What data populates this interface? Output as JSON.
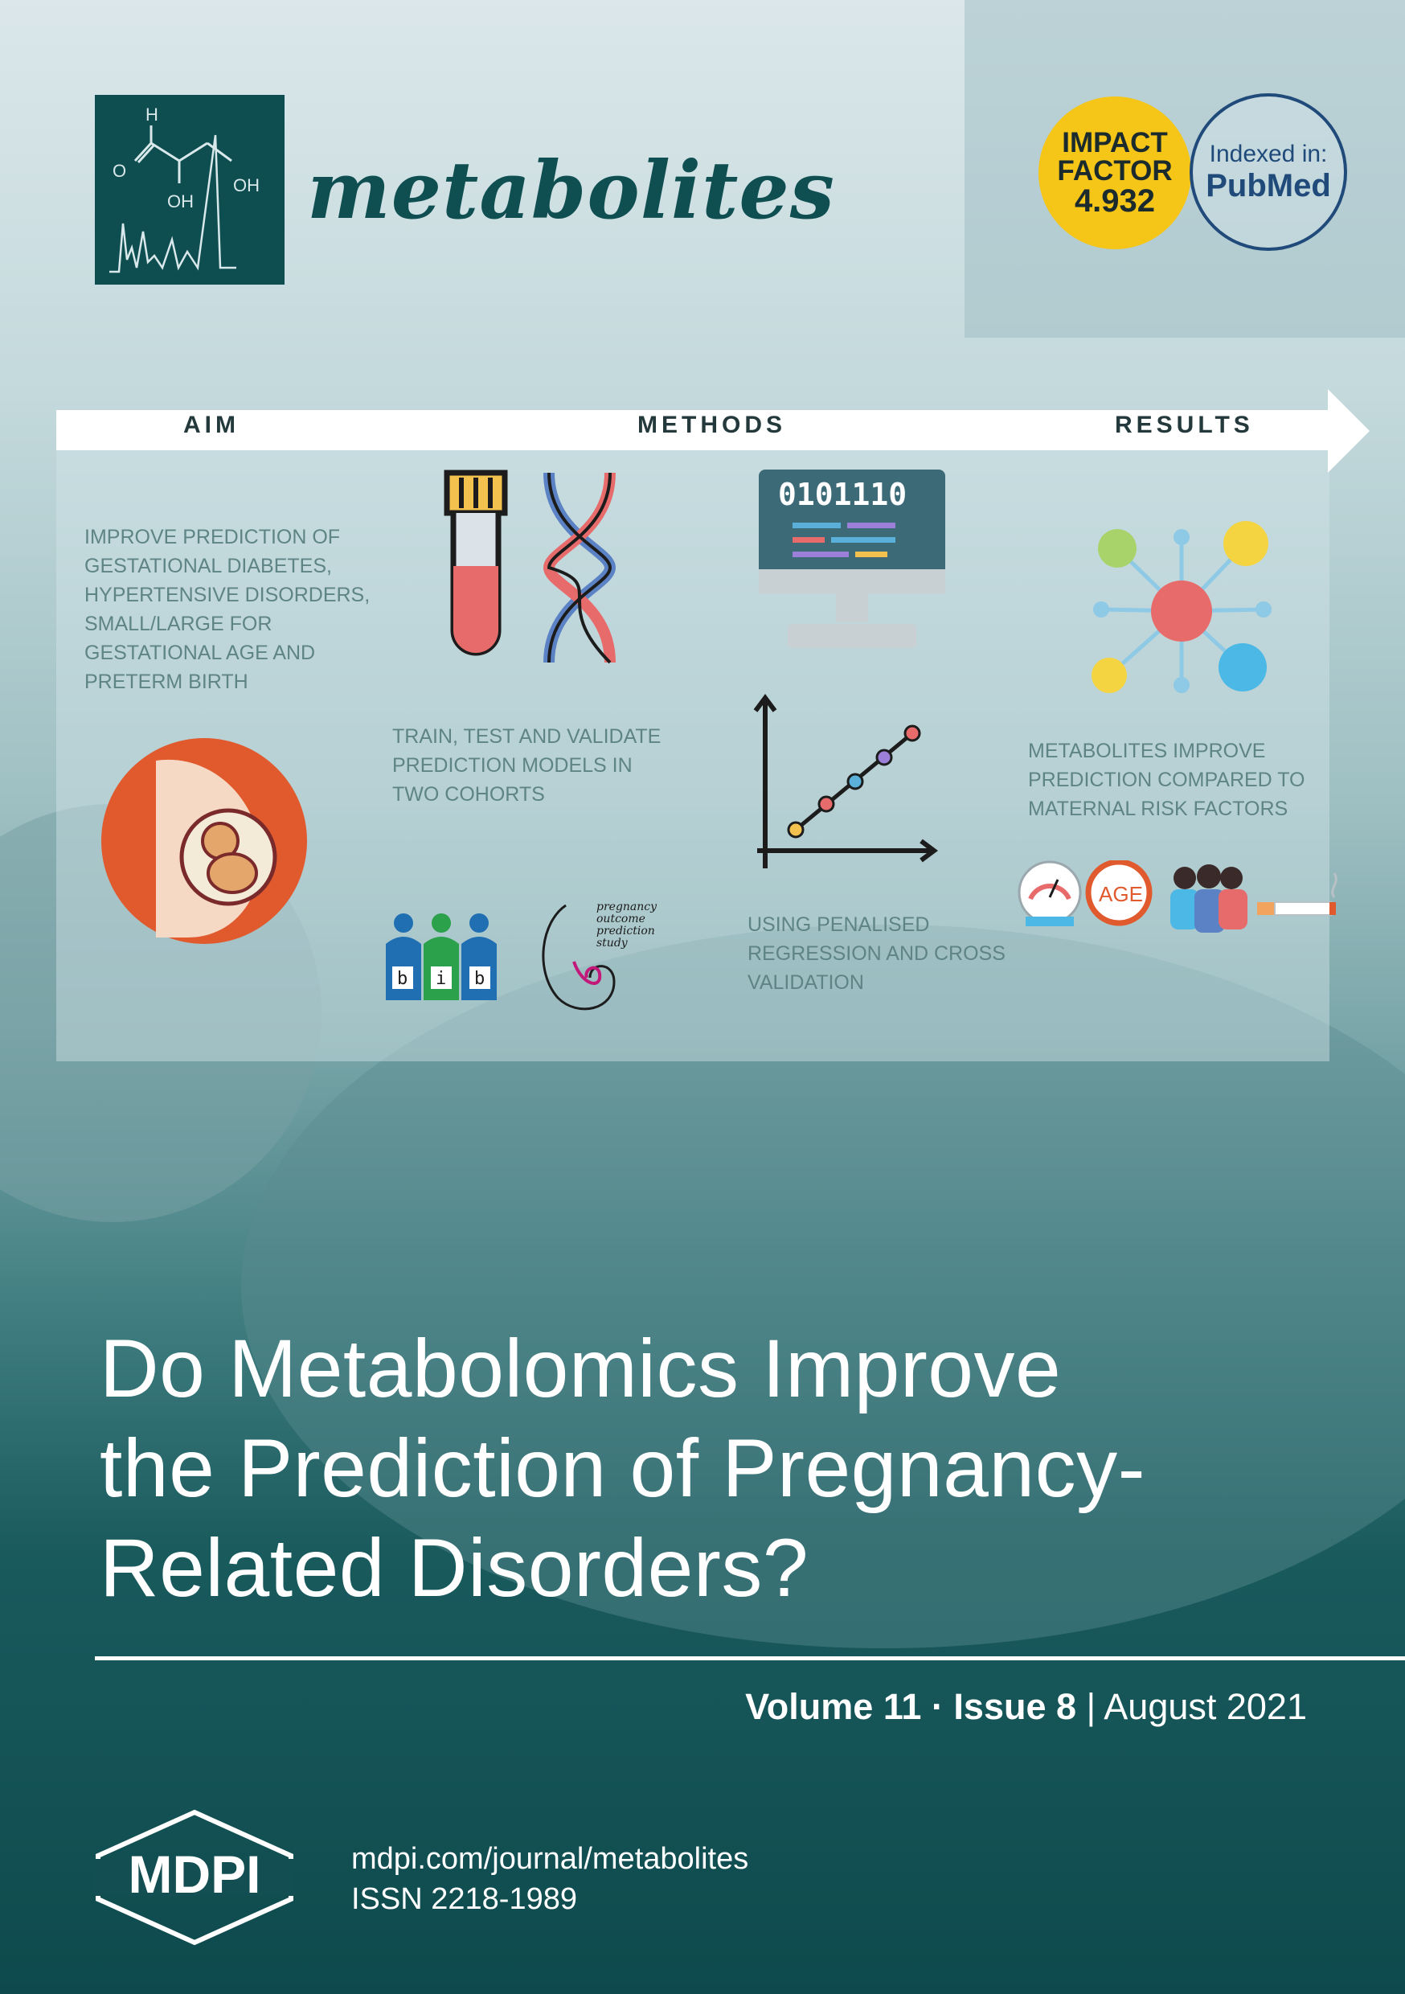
{
  "journal": {
    "name": "metabolites",
    "logo_atoms": {
      "h": "H",
      "o": "O",
      "oh1": "OH",
      "oh2": "OH"
    }
  },
  "badges": {
    "impact_factor": {
      "line1": "IMPACT",
      "line2": "FACTOR",
      "value": "4.932"
    },
    "pubmed": {
      "line1": "Indexed in:",
      "line2": "PubMed"
    }
  },
  "abstract": {
    "headers": {
      "aim": "AIM",
      "methods": "METHODS",
      "results": "RESULTS"
    },
    "aim_text": [
      "IMPROVE PREDICTION OF",
      "GESTATIONAL DIABETES,",
      "HYPERTENSIVE DISORDERS,",
      "SMALL/LARGE FOR",
      "GESTATIONAL AGE AND",
      "PRETERM BIRTH"
    ],
    "methods_text_1": [
      "TRAIN, TEST AND VALIDATE",
      "PREDICTION MODELS IN",
      "TWO COHORTS"
    ],
    "methods_text_2": [
      "USING PENALISED",
      "REGRESSION AND CROSS",
      "VALIDATION"
    ],
    "results_text": [
      "METABOLITES IMPROVE",
      "PREDICTION COMPARED TO",
      "MATERNAL RISK FACTORS"
    ],
    "computer_binary": "0101110",
    "bib_letters": [
      "b",
      "i",
      "b"
    ],
    "pops_logo": [
      "pregnancy",
      "outcome",
      "prediction",
      "study"
    ],
    "age_label": "AGE"
  },
  "title": [
    "Do Metabolomics Improve",
    "the Prediction of Pregnancy-",
    "Related Disorders?"
  ],
  "issue": {
    "volume": "Volume 11",
    "sep": "·",
    "issue": "Issue 8",
    "bar": "|",
    "date": "August 2021"
  },
  "publisher": {
    "logo": "MDPI",
    "url": "mdpi.com/journal/metabolites",
    "issn": "ISSN 2218-1989"
  },
  "colors": {
    "brand": "#0e4e51",
    "badge_yellow": "#f5c518",
    "pubmed_blue": "#1f4a7a"
  }
}
